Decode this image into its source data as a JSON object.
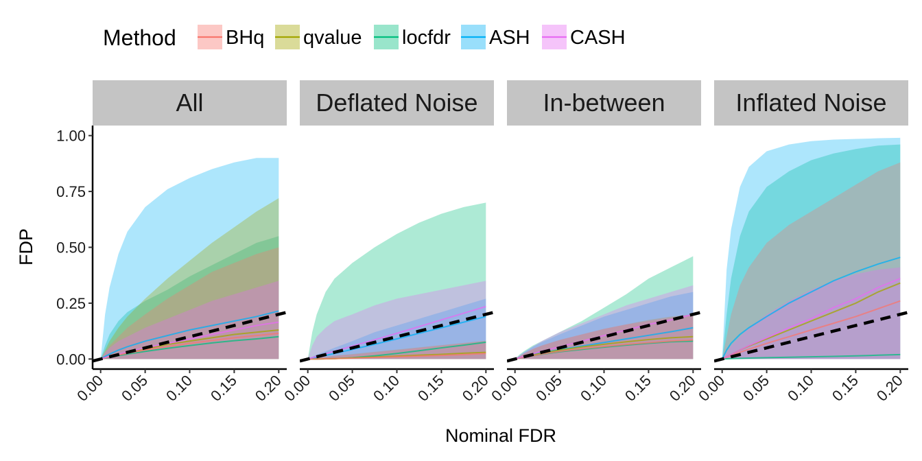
{
  "chart_data": {
    "type": "area",
    "legend": {
      "title": "Method",
      "placement": "top-left",
      "entries": [
        {
          "name": "BHq",
          "color": "#F8766D"
        },
        {
          "name": "qvalue",
          "color": "#A3A500"
        },
        {
          "name": "locfdr",
          "color": "#00BF7D"
        },
        {
          "name": "ASH",
          "color": "#00B0F6"
        },
        {
          "name": "CASH",
          "color": "#E76BF3"
        }
      ]
    },
    "xlabel": "Nominal FDR",
    "ylabel": "FDP",
    "xlim": [
      0,
      0.2
    ],
    "ylim": [
      0,
      1
    ],
    "xticks": [
      "0.00",
      "0.05",
      "0.10",
      "0.15",
      "0.20"
    ],
    "yticks": [
      "0.00",
      "0.25",
      "0.50",
      "0.75",
      "1.00"
    ],
    "reference_line": {
      "style": "dashed",
      "color": "#000000",
      "slope": 1,
      "intercept": 0
    },
    "x": [
      0,
      0.005,
      0.01,
      0.02,
      0.03,
      0.05,
      0.075,
      0.1,
      0.125,
      0.15,
      0.175,
      0.2
    ],
    "panels": [
      {
        "title": "All",
        "series": [
          {
            "name": "BHq",
            "mean": [
              0,
              0.005,
              0.01,
              0.018,
              0.026,
              0.04,
              0.056,
              0.07,
              0.083,
              0.095,
              0.105,
              0.115
            ],
            "lower": [
              0,
              0,
              0,
              0,
              0,
              0,
              0,
              0,
              0,
              0,
              0,
              0
            ],
            "upper": [
              0,
              0.03,
              0.06,
              0.1,
              0.14,
              0.2,
              0.27,
              0.33,
              0.39,
              0.43,
              0.47,
              0.5
            ]
          },
          {
            "name": "qvalue",
            "mean": [
              0,
              0.005,
              0.01,
              0.02,
              0.03,
              0.045,
              0.065,
              0.08,
              0.095,
              0.11,
              0.12,
              0.13
            ],
            "lower": [
              0,
              0,
              0,
              0,
              0,
              0,
              0,
              0,
              0,
              0,
              0,
              0
            ],
            "upper": [
              0,
              0.04,
              0.08,
              0.14,
              0.19,
              0.27,
              0.36,
              0.44,
              0.52,
              0.59,
              0.66,
              0.72
            ]
          },
          {
            "name": "locfdr",
            "mean": [
              0,
              0.004,
              0.008,
              0.015,
              0.022,
              0.034,
              0.048,
              0.06,
              0.072,
              0.082,
              0.09,
              0.1
            ],
            "lower": [
              0,
              0,
              0,
              0,
              0,
              0,
              0,
              0,
              0,
              0,
              0,
              0
            ],
            "upper": [
              0,
              0.06,
              0.11,
              0.17,
              0.21,
              0.26,
              0.31,
              0.37,
              0.42,
              0.47,
              0.52,
              0.55
            ]
          },
          {
            "name": "ASH",
            "mean": [
              0,
              0.012,
              0.022,
              0.04,
              0.055,
              0.08,
              0.105,
              0.13,
              0.15,
              0.17,
              0.19,
              0.215
            ],
            "lower": [
              0,
              0,
              0,
              0,
              0,
              0,
              0,
              0,
              0,
              0,
              0,
              0
            ],
            "upper": [
              0,
              0.2,
              0.32,
              0.47,
              0.57,
              0.68,
              0.76,
              0.81,
              0.85,
              0.88,
              0.9,
              0.9
            ]
          },
          {
            "name": "CASH",
            "mean": [
              0,
              0.006,
              0.012,
              0.022,
              0.032,
              0.05,
              0.07,
              0.09,
              0.11,
              0.13,
              0.15,
              0.165
            ],
            "lower": [
              0,
              0,
              0,
              0,
              0,
              0,
              0,
              0,
              0,
              0,
              0,
              0
            ],
            "upper": [
              0,
              0.03,
              0.05,
              0.08,
              0.1,
              0.14,
              0.18,
              0.22,
              0.26,
              0.29,
              0.32,
              0.35
            ]
          }
        ]
      },
      {
        "title": "Deflated Noise",
        "series": [
          {
            "name": "BHq",
            "mean": [
              0,
              0,
              0,
              0.001,
              0.002,
              0.004,
              0.007,
              0.01,
              0.013,
              0.016,
              0.02,
              0.025
            ],
            "lower": [
              0,
              0,
              0,
              0,
              0,
              0,
              0,
              0,
              0,
              0,
              0,
              0
            ],
            "upper": [
              0,
              0.003,
              0.006,
              0.01,
              0.014,
              0.02,
              0.03,
              0.04,
              0.05,
              0.06,
              0.07,
              0.08
            ]
          },
          {
            "name": "qvalue",
            "mean": [
              0,
              0,
              0,
              0.001,
              0.002,
              0.005,
              0.009,
              0.013,
              0.017,
              0.021,
              0.026,
              0.03
            ],
            "lower": [
              0,
              0,
              0,
              0,
              0,
              0,
              0,
              0,
              0,
              0,
              0,
              0
            ],
            "upper": [
              0,
              0.003,
              0.006,
              0.01,
              0.015,
              0.022,
              0.032,
              0.042,
              0.052,
              0.062,
              0.072,
              0.082
            ]
          },
          {
            "name": "locfdr",
            "mean": [
              0,
              0,
              0,
              0.001,
              0.002,
              0.006,
              0.014,
              0.025,
              0.037,
              0.05,
              0.062,
              0.075
            ],
            "lower": [
              0,
              0,
              0,
              0,
              0,
              0,
              0,
              0,
              0,
              0,
              0,
              0
            ],
            "upper": [
              0,
              0.12,
              0.2,
              0.3,
              0.36,
              0.43,
              0.5,
              0.56,
              0.61,
              0.65,
              0.68,
              0.7
            ]
          },
          {
            "name": "ASH",
            "mean": [
              0,
              0.004,
              0.008,
              0.016,
              0.025,
              0.043,
              0.066,
              0.09,
              0.115,
              0.14,
              0.165,
              0.19
            ],
            "lower": [
              0,
              0,
              0,
              0,
              0,
              0,
              0,
              0,
              0,
              0,
              0,
              0
            ],
            "upper": [
              0,
              0.01,
              0.02,
              0.035,
              0.05,
              0.08,
              0.12,
              0.15,
              0.18,
              0.21,
              0.24,
              0.27
            ]
          },
          {
            "name": "CASH",
            "mean": [
              0,
              0.006,
              0.012,
              0.024,
              0.035,
              0.058,
              0.086,
              0.115,
              0.145,
              0.175,
              0.205,
              0.235
            ],
            "lower": [
              0,
              0,
              0,
              0,
              0,
              0,
              0,
              0,
              0,
              0,
              0,
              0
            ],
            "upper": [
              0,
              0.06,
              0.1,
              0.14,
              0.17,
              0.2,
              0.24,
              0.27,
              0.29,
              0.31,
              0.33,
              0.35
            ]
          }
        ]
      },
      {
        "title": "In-between",
        "series": [
          {
            "name": "BHq",
            "mean": [
              0,
              0.004,
              0.008,
              0.015,
              0.022,
              0.034,
              0.046,
              0.056,
              0.065,
              0.073,
              0.08,
              0.085
            ],
            "lower": [
              0,
              0,
              0,
              0,
              0,
              0,
              0,
              0,
              0,
              0,
              0,
              0
            ],
            "upper": [
              0,
              0.012,
              0.025,
              0.045,
              0.06,
              0.085,
              0.11,
              0.135,
              0.155,
              0.17,
              0.185,
              0.2
            ]
          },
          {
            "name": "qvalue",
            "mean": [
              0,
              0.005,
              0.01,
              0.018,
              0.026,
              0.04,
              0.054,
              0.066,
              0.077,
              0.087,
              0.095,
              0.1
            ],
            "lower": [
              0,
              0,
              0,
              0,
              0,
              0,
              0,
              0,
              0,
              0,
              0,
              0
            ],
            "upper": [
              0,
              0.012,
              0.024,
              0.045,
              0.06,
              0.085,
              0.11,
              0.135,
              0.155,
              0.175,
              0.19,
              0.2
            ]
          },
          {
            "name": "locfdr",
            "mean": [
              0,
              0.004,
              0.008,
              0.015,
              0.021,
              0.032,
              0.043,
              0.053,
              0.062,
              0.07,
              0.077,
              0.08
            ],
            "lower": [
              0,
              0,
              0,
              0,
              0,
              0,
              0,
              0,
              0,
              0,
              0,
              0
            ],
            "upper": [
              0,
              0.02,
              0.035,
              0.06,
              0.08,
              0.12,
              0.17,
              0.23,
              0.29,
              0.36,
              0.41,
              0.46
            ]
          },
          {
            "name": "ASH",
            "mean": [
              0,
              0.005,
              0.01,
              0.02,
              0.028,
              0.042,
              0.058,
              0.074,
              0.09,
              0.106,
              0.122,
              0.14
            ],
            "lower": [
              0,
              0,
              0,
              0,
              0,
              0,
              0,
              0,
              0,
              0,
              0,
              0
            ],
            "upper": [
              0,
              0.015,
              0.03,
              0.055,
              0.075,
              0.11,
              0.15,
              0.19,
              0.22,
              0.25,
              0.28,
              0.3
            ]
          },
          {
            "name": "CASH",
            "mean": [
              0,
              0.006,
              0.012,
              0.024,
              0.035,
              0.055,
              0.08,
              0.105,
              0.13,
              0.155,
              0.175,
              0.2
            ],
            "lower": [
              0,
              0,
              0,
              0,
              0,
              0,
              0,
              0,
              0,
              0,
              0,
              0
            ],
            "upper": [
              0,
              0.015,
              0.03,
              0.055,
              0.08,
              0.12,
              0.16,
              0.2,
              0.24,
              0.27,
              0.3,
              0.33
            ]
          }
        ]
      },
      {
        "title": "Inflated Noise",
        "series": [
          {
            "name": "BHq",
            "mean": [
              0,
              0.008,
              0.016,
              0.03,
              0.044,
              0.07,
              0.1,
              0.13,
              0.16,
              0.19,
              0.225,
              0.26
            ],
            "lower": [
              0,
              0,
              0,
              0,
              0,
              0,
              0,
              0,
              0,
              0,
              0,
              0
            ],
            "upper": [
              0,
              0.1,
              0.2,
              0.33,
              0.41,
              0.52,
              0.6,
              0.66,
              0.72,
              0.78,
              0.84,
              0.88
            ]
          },
          {
            "name": "qvalue",
            "mean": [
              0,
              0.01,
              0.02,
              0.04,
              0.058,
              0.09,
              0.13,
              0.17,
              0.21,
              0.25,
              0.3,
              0.34
            ]
          },
          {
            "name": "locfdr",
            "mean": [
              0,
              0.001,
              0.002,
              0.003,
              0.004,
              0.006,
              0.008,
              0.01,
              0.012,
              0.014,
              0.017,
              0.02
            ],
            "lower": [
              0,
              0,
              0,
              0,
              0,
              0,
              0,
              0,
              0,
              0,
              0,
              0
            ],
            "upper": [
              0,
              0.2,
              0.36,
              0.55,
              0.66,
              0.77,
              0.84,
              0.89,
              0.92,
              0.94,
              0.955,
              0.96
            ]
          },
          {
            "name": "ASH",
            "mean": [
              0,
              0.04,
              0.07,
              0.11,
              0.14,
              0.19,
              0.25,
              0.3,
              0.35,
              0.39,
              0.425,
              0.455
            ],
            "lower": [
              0,
              0,
              0,
              0,
              0,
              0,
              0,
              0,
              0,
              0,
              0,
              0
            ],
            "upper": [
              0,
              0.4,
              0.58,
              0.77,
              0.86,
              0.93,
              0.96,
              0.975,
              0.982,
              0.985,
              0.988,
              0.99
            ]
          },
          {
            "name": "CASH",
            "mean": [
              0,
              0.01,
              0.02,
              0.04,
              0.06,
              0.095,
              0.14,
              0.18,
              0.23,
              0.27,
              0.32,
              0.36
            ],
            "lower": [
              0,
              0,
              0,
              0,
              0,
              0,
              0,
              0,
              0,
              0,
              0,
              0
            ],
            "upper": [
              0,
              0.03,
              0.06,
              0.1,
              0.14,
              0.2,
              0.26,
              0.31,
              0.35,
              0.38,
              0.4,
              0.41
            ]
          }
        ]
      }
    ]
  }
}
